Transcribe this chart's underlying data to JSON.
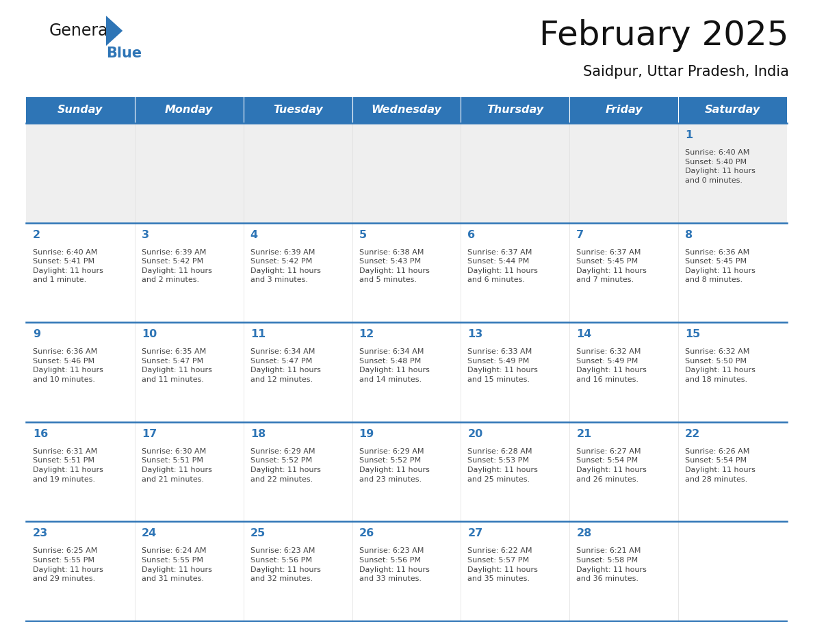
{
  "title": "February 2025",
  "subtitle": "Saidpur, Uttar Pradesh, India",
  "days_of_week": [
    "Sunday",
    "Monday",
    "Tuesday",
    "Wednesday",
    "Thursday",
    "Friday",
    "Saturday"
  ],
  "header_bg": "#2E75B6",
  "header_text_color": "#FFFFFF",
  "cell_bg_week0": "#EFEFEF",
  "cell_bg_other": "#FFFFFF",
  "day_num_color": "#2E75B6",
  "text_color": "#444444",
  "line_color": "#2E75B6",
  "logo_general_color": "#1a1a1a",
  "logo_blue_color": "#2E75B6",
  "weeks": [
    [
      {
        "day": null,
        "sunrise": null,
        "sunset": null,
        "daylight": null
      },
      {
        "day": null,
        "sunrise": null,
        "sunset": null,
        "daylight": null
      },
      {
        "day": null,
        "sunrise": null,
        "sunset": null,
        "daylight": null
      },
      {
        "day": null,
        "sunrise": null,
        "sunset": null,
        "daylight": null
      },
      {
        "day": null,
        "sunrise": null,
        "sunset": null,
        "daylight": null
      },
      {
        "day": null,
        "sunrise": null,
        "sunset": null,
        "daylight": null
      },
      {
        "day": 1,
        "sunrise": "6:40 AM",
        "sunset": "5:40 PM",
        "daylight": "11 hours\nand 0 minutes."
      }
    ],
    [
      {
        "day": 2,
        "sunrise": "6:40 AM",
        "sunset": "5:41 PM",
        "daylight": "11 hours\nand 1 minute."
      },
      {
        "day": 3,
        "sunrise": "6:39 AM",
        "sunset": "5:42 PM",
        "daylight": "11 hours\nand 2 minutes."
      },
      {
        "day": 4,
        "sunrise": "6:39 AM",
        "sunset": "5:42 PM",
        "daylight": "11 hours\nand 3 minutes."
      },
      {
        "day": 5,
        "sunrise": "6:38 AM",
        "sunset": "5:43 PM",
        "daylight": "11 hours\nand 5 minutes."
      },
      {
        "day": 6,
        "sunrise": "6:37 AM",
        "sunset": "5:44 PM",
        "daylight": "11 hours\nand 6 minutes."
      },
      {
        "day": 7,
        "sunrise": "6:37 AM",
        "sunset": "5:45 PM",
        "daylight": "11 hours\nand 7 minutes."
      },
      {
        "day": 8,
        "sunrise": "6:36 AM",
        "sunset": "5:45 PM",
        "daylight": "11 hours\nand 8 minutes."
      }
    ],
    [
      {
        "day": 9,
        "sunrise": "6:36 AM",
        "sunset": "5:46 PM",
        "daylight": "11 hours\nand 10 minutes."
      },
      {
        "day": 10,
        "sunrise": "6:35 AM",
        "sunset": "5:47 PM",
        "daylight": "11 hours\nand 11 minutes."
      },
      {
        "day": 11,
        "sunrise": "6:34 AM",
        "sunset": "5:47 PM",
        "daylight": "11 hours\nand 12 minutes."
      },
      {
        "day": 12,
        "sunrise": "6:34 AM",
        "sunset": "5:48 PM",
        "daylight": "11 hours\nand 14 minutes."
      },
      {
        "day": 13,
        "sunrise": "6:33 AM",
        "sunset": "5:49 PM",
        "daylight": "11 hours\nand 15 minutes."
      },
      {
        "day": 14,
        "sunrise": "6:32 AM",
        "sunset": "5:49 PM",
        "daylight": "11 hours\nand 16 minutes."
      },
      {
        "day": 15,
        "sunrise": "6:32 AM",
        "sunset": "5:50 PM",
        "daylight": "11 hours\nand 18 minutes."
      }
    ],
    [
      {
        "day": 16,
        "sunrise": "6:31 AM",
        "sunset": "5:51 PM",
        "daylight": "11 hours\nand 19 minutes."
      },
      {
        "day": 17,
        "sunrise": "6:30 AM",
        "sunset": "5:51 PM",
        "daylight": "11 hours\nand 21 minutes."
      },
      {
        "day": 18,
        "sunrise": "6:29 AM",
        "sunset": "5:52 PM",
        "daylight": "11 hours\nand 22 minutes."
      },
      {
        "day": 19,
        "sunrise": "6:29 AM",
        "sunset": "5:52 PM",
        "daylight": "11 hours\nand 23 minutes."
      },
      {
        "day": 20,
        "sunrise": "6:28 AM",
        "sunset": "5:53 PM",
        "daylight": "11 hours\nand 25 minutes."
      },
      {
        "day": 21,
        "sunrise": "6:27 AM",
        "sunset": "5:54 PM",
        "daylight": "11 hours\nand 26 minutes."
      },
      {
        "day": 22,
        "sunrise": "6:26 AM",
        "sunset": "5:54 PM",
        "daylight": "11 hours\nand 28 minutes."
      }
    ],
    [
      {
        "day": 23,
        "sunrise": "6:25 AM",
        "sunset": "5:55 PM",
        "daylight": "11 hours\nand 29 minutes."
      },
      {
        "day": 24,
        "sunrise": "6:24 AM",
        "sunset": "5:55 PM",
        "daylight": "11 hours\nand 31 minutes."
      },
      {
        "day": 25,
        "sunrise": "6:23 AM",
        "sunset": "5:56 PM",
        "daylight": "11 hours\nand 32 minutes."
      },
      {
        "day": 26,
        "sunrise": "6:23 AM",
        "sunset": "5:56 PM",
        "daylight": "11 hours\nand 33 minutes."
      },
      {
        "day": 27,
        "sunrise": "6:22 AM",
        "sunset": "5:57 PM",
        "daylight": "11 hours\nand 35 minutes."
      },
      {
        "day": 28,
        "sunrise": "6:21 AM",
        "sunset": "5:58 PM",
        "daylight": "11 hours\nand 36 minutes."
      },
      {
        "day": null,
        "sunrise": null,
        "sunset": null,
        "daylight": null
      }
    ]
  ],
  "fig_width": 11.88,
  "fig_height": 9.18,
  "dpi": 100
}
